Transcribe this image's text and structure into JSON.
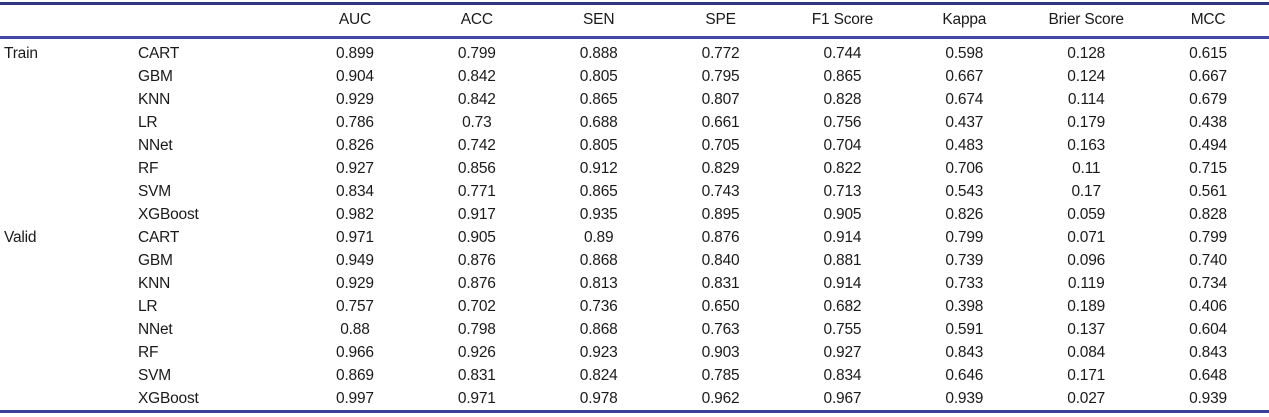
{
  "colors": {
    "background": "#ffffff",
    "text": "#1a1a1a",
    "rule_top": "#31357f",
    "rule_mid": "#4247a5",
    "rule_bottom": "#3a3f99"
  },
  "table": {
    "headers": [
      "AUC",
      "ACC",
      "SEN",
      "SPE",
      "F1 Score",
      "Kappa",
      "Brier Score",
      "MCC"
    ],
    "rows": [
      {
        "group": "Train",
        "model": "CART",
        "values": [
          "0.899",
          "0.799",
          "0.888",
          "0.772",
          "0.744",
          "0.598",
          "0.128",
          "0.615"
        ]
      },
      {
        "group": "",
        "model": "GBM",
        "values": [
          "0.904",
          "0.842",
          "0.805",
          "0.795",
          "0.865",
          "0.667",
          "0.124",
          "0.667"
        ]
      },
      {
        "group": "",
        "model": "KNN",
        "values": [
          "0.929",
          "0.842",
          "0.865",
          "0.807",
          "0.828",
          "0.674",
          "0.114",
          "0.679"
        ]
      },
      {
        "group": "",
        "model": "LR",
        "values": [
          "0.786",
          "0.73",
          "0.688",
          "0.661",
          "0.756",
          "0.437",
          "0.179",
          "0.438"
        ]
      },
      {
        "group": "",
        "model": "NNet",
        "values": [
          "0.826",
          "0.742",
          "0.805",
          "0.705",
          "0.704",
          "0.483",
          "0.163",
          "0.494"
        ]
      },
      {
        "group": "",
        "model": "RF",
        "values": [
          "0.927",
          "0.856",
          "0.912",
          "0.829",
          "0.822",
          "0.706",
          "0.11",
          "0.715"
        ]
      },
      {
        "group": "",
        "model": "SVM",
        "values": [
          "0.834",
          "0.771",
          "0.865",
          "0.743",
          "0.713",
          "0.543",
          "0.17",
          "0.561"
        ]
      },
      {
        "group": "",
        "model": "XGBoost",
        "values": [
          "0.982",
          "0.917",
          "0.935",
          "0.895",
          "0.905",
          "0.826",
          "0.059",
          "0.828"
        ]
      },
      {
        "group": "Valid",
        "model": "CART",
        "values": [
          "0.971",
          "0.905",
          "0.89",
          "0.876",
          "0.914",
          "0.799",
          "0.071",
          "0.799"
        ]
      },
      {
        "group": "",
        "model": "GBM",
        "values": [
          "0.949",
          "0.876",
          "0.868",
          "0.840",
          "0.881",
          "0.739",
          "0.096",
          "0.740"
        ]
      },
      {
        "group": "",
        "model": "KNN",
        "values": [
          "0.929",
          "0.876",
          "0.813",
          "0.831",
          "0.914",
          "0.733",
          "0.119",
          "0.734"
        ]
      },
      {
        "group": "",
        "model": "LR",
        "values": [
          "0.757",
          "0.702",
          "0.736",
          "0.650",
          "0.682",
          "0.398",
          "0.189",
          "0.406"
        ]
      },
      {
        "group": "",
        "model": "NNet",
        "values": [
          "0.88",
          "0.798",
          "0.868",
          "0.763",
          "0.755",
          "0.591",
          "0.137",
          "0.604"
        ]
      },
      {
        "group": "",
        "model": "RF",
        "values": [
          "0.966",
          "0.926",
          "0.923",
          "0.903",
          "0.927",
          "0.843",
          "0.084",
          "0.843"
        ]
      },
      {
        "group": "",
        "model": "SVM",
        "values": [
          "0.869",
          "0.831",
          "0.824",
          "0.785",
          "0.834",
          "0.646",
          "0.171",
          "0.648"
        ]
      },
      {
        "group": "",
        "model": "XGBoost",
        "values": [
          "0.997",
          "0.971",
          "0.978",
          "0.962",
          "0.967",
          "0.939",
          "0.027",
          "0.939"
        ]
      }
    ]
  }
}
